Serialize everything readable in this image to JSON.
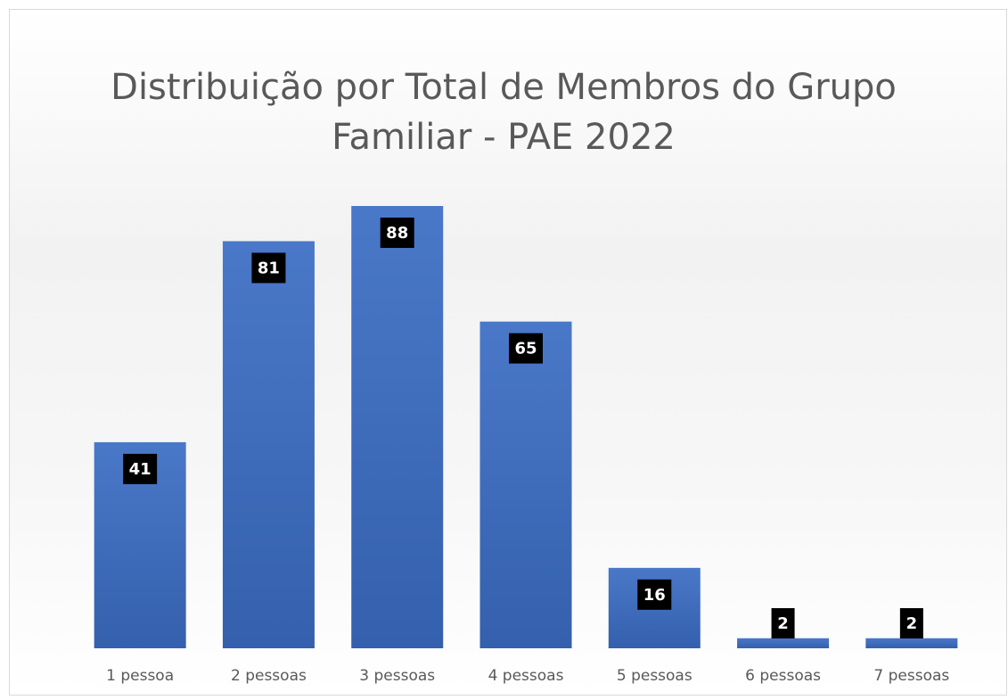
{
  "chart_data": {
    "type": "bar",
    "title": "Distribuição por Total de Membros do Grupo Familiar - PAE 2022",
    "categories": [
      "1 pessoa",
      "2 pessoas",
      "3 pessoas",
      "4 pessoas",
      "5 pessoas",
      "6 pessoas",
      "7 pessoas"
    ],
    "values": [
      41,
      81,
      88,
      65,
      16,
      2,
      2
    ],
    "color": "#4472c4",
    "grid": false
  }
}
